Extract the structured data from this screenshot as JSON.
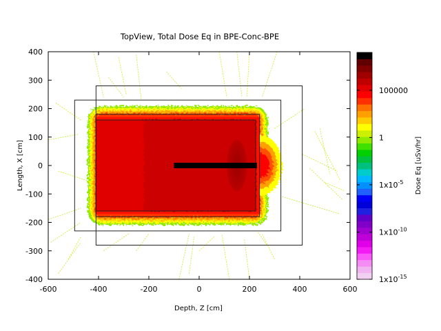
{
  "chart_data": {
    "type": "heatmap",
    "title": "TopView, Total Dose Eq in BPE-Conc-BPE",
    "xlabel": "Depth, Z [cm]",
    "ylabel": "Length, X [cm]",
    "xlim": [
      -600,
      600
    ],
    "ylim": [
      -400,
      400
    ],
    "x_ticks": [
      "-600",
      "-400",
      "-200",
      "0",
      "200",
      "400",
      "600"
    ],
    "y_ticks": [
      "400",
      "300",
      "200",
      "100",
      "0",
      "-100",
      "-200",
      "-300",
      "-400"
    ],
    "x_tick_values": [
      -600,
      -400,
      -200,
      0,
      200,
      400,
      600
    ],
    "y_tick_values": [
      400,
      300,
      200,
      100,
      0,
      -100,
      -200,
      -300,
      -400
    ],
    "colorbar": {
      "label": "Dose Eq [uSv/hr]",
      "scale": "log",
      "log_range": [
        -15,
        9
      ],
      "ticks": [
        {
          "base": "100000",
          "exp": "",
          "log": 5
        },
        {
          "base": "1",
          "exp": "",
          "log": 0
        },
        {
          "base": "1x10",
          "exp": "-5",
          "log": -5
        },
        {
          "base": "1x10",
          "exp": "-10",
          "log": -10
        },
        {
          "base": "1x10",
          "exp": "-15",
          "log": -15
        }
      ],
      "colors": [
        "#f2d0f2",
        "#f0b4f0",
        "#f48cf4",
        "#f858f8",
        "#f41cf4",
        "#e000e8",
        "#c000d8",
        "#a000d0",
        "#8000c8",
        "#6000c8",
        "#2020e0",
        "#0000d8",
        "#0000f8",
        "#2060ff",
        "#0090ff",
        "#00b8ff",
        "#00cccc",
        "#00c080",
        "#00c040",
        "#00d000",
        "#40e000",
        "#90ea00",
        "#ccf000",
        "#ffff00",
        "#ffcc00",
        "#ffa000",
        "#ff7000",
        "#ff3000",
        "#ff0000",
        "#e00000",
        "#c00000",
        "#a00000",
        "#800000",
        "#600000",
        "#000000"
      ]
    },
    "regions": [
      {
        "name": "outer-boundary",
        "z": [
          -410,
          410
        ],
        "x": [
          -280,
          280
        ]
      },
      {
        "name": "bpe-outer-layer",
        "z": [
          -495,
          325
        ],
        "x": [
          -230,
          230
        ]
      },
      {
        "name": "concrete-shield",
        "z": [
          -410,
          240
        ],
        "x": [
          -180,
          180
        ]
      },
      {
        "name": "inner-cavity",
        "z": [
          -410,
          225
        ],
        "x": [
          -160,
          160
        ]
      }
    ],
    "beam": {
      "z": [
        -100,
        230
      ],
      "x": 0
    },
    "dose_colors": {
      "inner": "#e00000",
      "front": "#cc0000",
      "hotspot": "#aa0000"
    }
  }
}
